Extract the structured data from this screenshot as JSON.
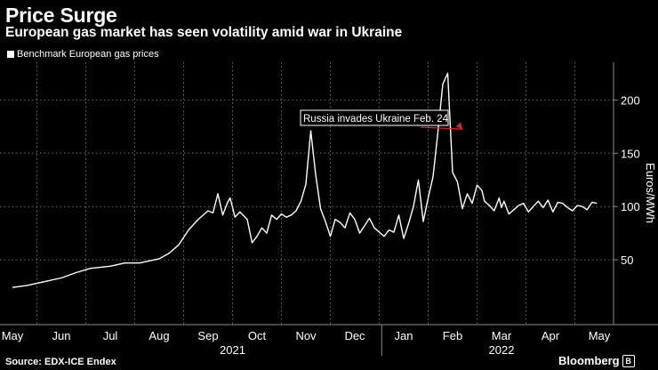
{
  "header": {
    "title": "Price Surge",
    "subtitle": "European gas market has seen volatility amid war in Ukraine",
    "legend_label": "Benchmark European gas prices"
  },
  "footer": {
    "source": "Source: EDX-ICE Endex",
    "brand": "Bloomberg",
    "brand_icon": "bloomberg-logo-icon"
  },
  "colors": {
    "background": "#000000",
    "line": "#ffffff",
    "grid": "#6e6e6e",
    "arrow": "#d9272e"
  },
  "chart_data": {
    "type": "line",
    "title": "Price Surge",
    "subtitle": "European gas market has seen volatility amid war in Ukraine",
    "ylabel": "Euros/MWh",
    "xlabel": "",
    "ylim": [
      0,
      240
    ],
    "yticks": [
      50,
      100,
      150,
      200
    ],
    "grid": true,
    "legend": "top-left",
    "months": [
      "May",
      "Jun",
      "Jul",
      "Aug",
      "Sep",
      "Oct",
      "Nov",
      "Dec",
      "Jan",
      "Feb",
      "Mar",
      "Apr",
      "May"
    ],
    "month_index": [
      0,
      1,
      2,
      3,
      4,
      5,
      6,
      7,
      8,
      9,
      10,
      11,
      12
    ],
    "years": [
      {
        "label": "2021",
        "at_month": 4.5
      },
      {
        "label": "2022",
        "at_month": 10
      }
    ],
    "annotation": {
      "text": "Russia invades Ukraine Feb. 24",
      "at_month": 9.2,
      "value": 110
    },
    "series": [
      {
        "name": "Benchmark European gas prices",
        "x": [
          0,
          0.3,
          0.6,
          1.0,
          1.3,
          1.6,
          2.0,
          2.3,
          2.6,
          3.0,
          3.2,
          3.4,
          3.6,
          3.8,
          4.0,
          4.1,
          4.2,
          4.3,
          4.4,
          4.45,
          4.55,
          4.65,
          4.8,
          4.9,
          5.0,
          5.1,
          5.2,
          5.3,
          5.4,
          5.5,
          5.6,
          5.7,
          5.8,
          5.9,
          6.0,
          6.1,
          6.2,
          6.3,
          6.4,
          6.5,
          6.6,
          6.7,
          6.8,
          6.9,
          7.0,
          7.1,
          7.2,
          7.3,
          7.4,
          7.5,
          7.6,
          7.7,
          7.8,
          7.9,
          8.0,
          8.1,
          8.2,
          8.3,
          8.4,
          8.5,
          8.6,
          8.7,
          8.8,
          8.9,
          9.0,
          9.1,
          9.2,
          9.3,
          9.4,
          9.5,
          9.6,
          9.65,
          9.75,
          9.85,
          9.95,
          10.0,
          10.05,
          10.15,
          10.25,
          10.35,
          10.45,
          10.55,
          10.65,
          10.75,
          10.85,
          10.95,
          11.05,
          11.15,
          11.25,
          11.35,
          11.45,
          11.55,
          11.65,
          11.75,
          11.85,
          11.95
        ],
        "values": [
          24,
          26,
          29,
          33,
          38,
          42,
          44,
          47,
          47,
          51,
          56,
          64,
          78,
          88,
          96,
          94,
          112,
          92,
          104,
          108,
          90,
          95,
          88,
          66,
          72,
          80,
          75,
          92,
          88,
          93,
          90,
          92,
          96,
          105,
          121,
          171,
          130,
          98,
          86,
          72,
          88,
          85,
          80,
          94,
          88,
          75,
          82,
          89,
          80,
          76,
          72,
          78,
          76,
          92,
          70,
          84,
          100,
          125,
          86,
          108,
          128,
          170,
          215,
          225,
          132,
          123,
          98,
          112,
          103,
          120,
          115,
          105,
          101,
          96,
          108,
          99,
          105,
          93,
          97,
          101,
          103,
          95,
          100,
          105,
          99,
          106,
          95,
          104,
          103,
          99,
          96,
          101,
          100,
          97,
          104,
          103
        ]
      }
    ]
  }
}
